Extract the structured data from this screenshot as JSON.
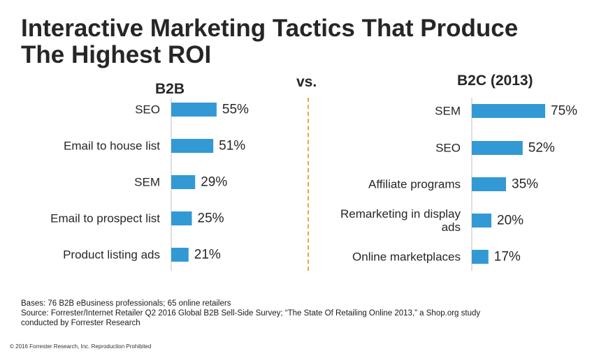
{
  "title": {
    "line1": "Interactive Marketing Tactics That Produce",
    "line2": "The Highest ROI"
  },
  "vs_label": "vs.",
  "chart_data": [
    {
      "type": "bar",
      "orientation": "horizontal",
      "title": "B2B",
      "categories": [
        "SEO",
        "Email to house list",
        "SEM",
        "Email to prospect list",
        "Product listing ads"
      ],
      "category_lines": [
        [
          "SEO"
        ],
        [
          "Email to house list"
        ],
        [
          "SEM"
        ],
        [
          "Email to prospect list"
        ],
        [
          "Product listing ads"
        ]
      ],
      "values": [
        55,
        51,
        29,
        25,
        21
      ],
      "value_labels": [
        "55%",
        "51%",
        "29%",
        "25%",
        "21%"
      ],
      "unit": "%",
      "color": "#3399d4"
    },
    {
      "type": "bar",
      "orientation": "horizontal",
      "title": "B2C (2013)",
      "categories": [
        "SEM",
        "SEO",
        "Affiliate programs",
        "Remarketing in display ads",
        "Online marketplaces"
      ],
      "category_lines": [
        [
          "SEM"
        ],
        [
          "SEO"
        ],
        [
          "Affiliate programs"
        ],
        [
          "Remarketing in display",
          "ads"
        ],
        [
          "Online marketplaces"
        ]
      ],
      "values": [
        75,
        52,
        35,
        20,
        17
      ],
      "value_labels": [
        "75%",
        "52%",
        "35%",
        "20%",
        "17%"
      ],
      "unit": "%",
      "color": "#3399d4"
    }
  ],
  "footnotes": {
    "bases": "Bases: 76 B2B eBusiness professionals; 65 online retailers",
    "source_line1": "Source:  Forrester/Internet Retailer Q2 2016 Global B2B Sell-Side Survey; “The State Of Retailing Online 2013,” a Shop.org study",
    "source_line2": "conducted by Forrester Research"
  },
  "copyright": "© 2016 Forrester Research, Inc. Reproduction Prohibited"
}
